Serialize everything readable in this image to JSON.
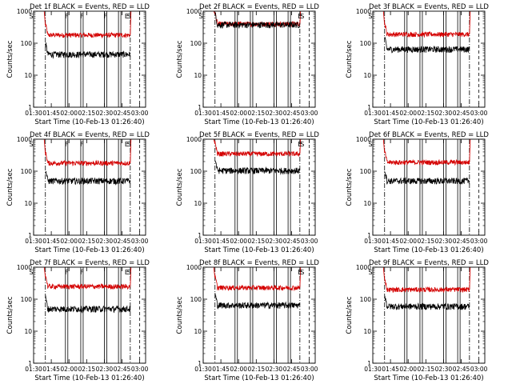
{
  "chart_data": {
    "type": "line",
    "y_scale": "log",
    "ylim": [
      1,
      1000
    ],
    "y_ticks": [
      "1",
      "10",
      "100",
      "1000"
    ],
    "xlim": [
      "01:30",
      "03:05"
    ],
    "x_ticks": [
      "01:30",
      "01:45",
      "02:00",
      "02:15",
      "02:30",
      "02:45",
      "03:00"
    ],
    "ylabel": "Counts/sec",
    "xlabel": "Start Time (10-Feb-13 01:26:40)",
    "series_colors": {
      "events": "#000000",
      "lld": "#d40000"
    },
    "panels": [
      {
        "title": "Det 1f BLACK = Events, RED = LLD",
        "markers": [
          {
            "label": "S",
            "time": "01:28"
          },
          {
            "label": "F",
            "time": "01:58"
          },
          {
            "label": "F",
            "time": "02:11"
          },
          {
            "label": "F",
            "time": "02:31"
          },
          {
            "label": "E",
            "time": "02:49"
          },
          {
            "label": "S",
            "time": "02:51"
          }
        ],
        "lld_level": 180,
        "events_level": 45
      },
      {
        "title": "Det 2f BLACK = Events, RED = LLD",
        "markers": [
          {
            "label": "S",
            "time": "01:28"
          },
          {
            "label": "E",
            "time": "02:52"
          },
          {
            "label": "S",
            "time": "02:54"
          }
        ],
        "lld_level": 400,
        "events_level": 380
      },
      {
        "title": "Det 3f BLACK = Events, RED = LLD",
        "markers": [
          {
            "label": "S",
            "time": "01:28"
          }
        ],
        "lld_level": 190,
        "events_level": 65
      },
      {
        "title": "Det 4f BLACK = Events, RED = LLD",
        "markers": [
          {
            "label": "S",
            "time": "01:28"
          },
          {
            "label": "F",
            "time": "01:58"
          },
          {
            "label": "F",
            "time": "02:11"
          },
          {
            "label": "E",
            "time": "02:49"
          },
          {
            "label": "S",
            "time": "02:51"
          }
        ],
        "lld_level": 180,
        "events_level": 50
      },
      {
        "title": "Det 5f BLACK = Events, RED = LLD",
        "markers": [
          {
            "label": "E",
            "time": "02:52"
          },
          {
            "label": "S",
            "time": "02:54"
          }
        ],
        "lld_level": 350,
        "events_level": 105
      },
      {
        "title": "Det 6f BLACK = Events, RED = LLD",
        "markers": [
          {
            "label": "S",
            "time": "01:28"
          }
        ],
        "lld_level": 190,
        "events_level": 50
      },
      {
        "title": "Det 7f BLACK = Events, RED = LLD",
        "markers": [
          {
            "label": "S",
            "time": "01:28"
          },
          {
            "label": "F",
            "time": "01:58"
          },
          {
            "label": "F",
            "time": "02:11"
          },
          {
            "label": "E",
            "time": "02:49"
          },
          {
            "label": "S",
            "time": "02:51"
          }
        ],
        "lld_level": 250,
        "events_level": 50
      },
      {
        "title": "Det 8f BLACK = Events, RED = LLD",
        "markers": [
          {
            "label": "E",
            "time": "02:52"
          },
          {
            "label": "S",
            "time": "02:54"
          }
        ],
        "lld_level": 230,
        "events_level": 65
      },
      {
        "title": "Det 9f BLACK = Events, RED = LLD",
        "markers": [
          {
            "label": "S",
            "time": "01:28"
          }
        ],
        "lld_level": 200,
        "events_level": 60
      }
    ]
  }
}
